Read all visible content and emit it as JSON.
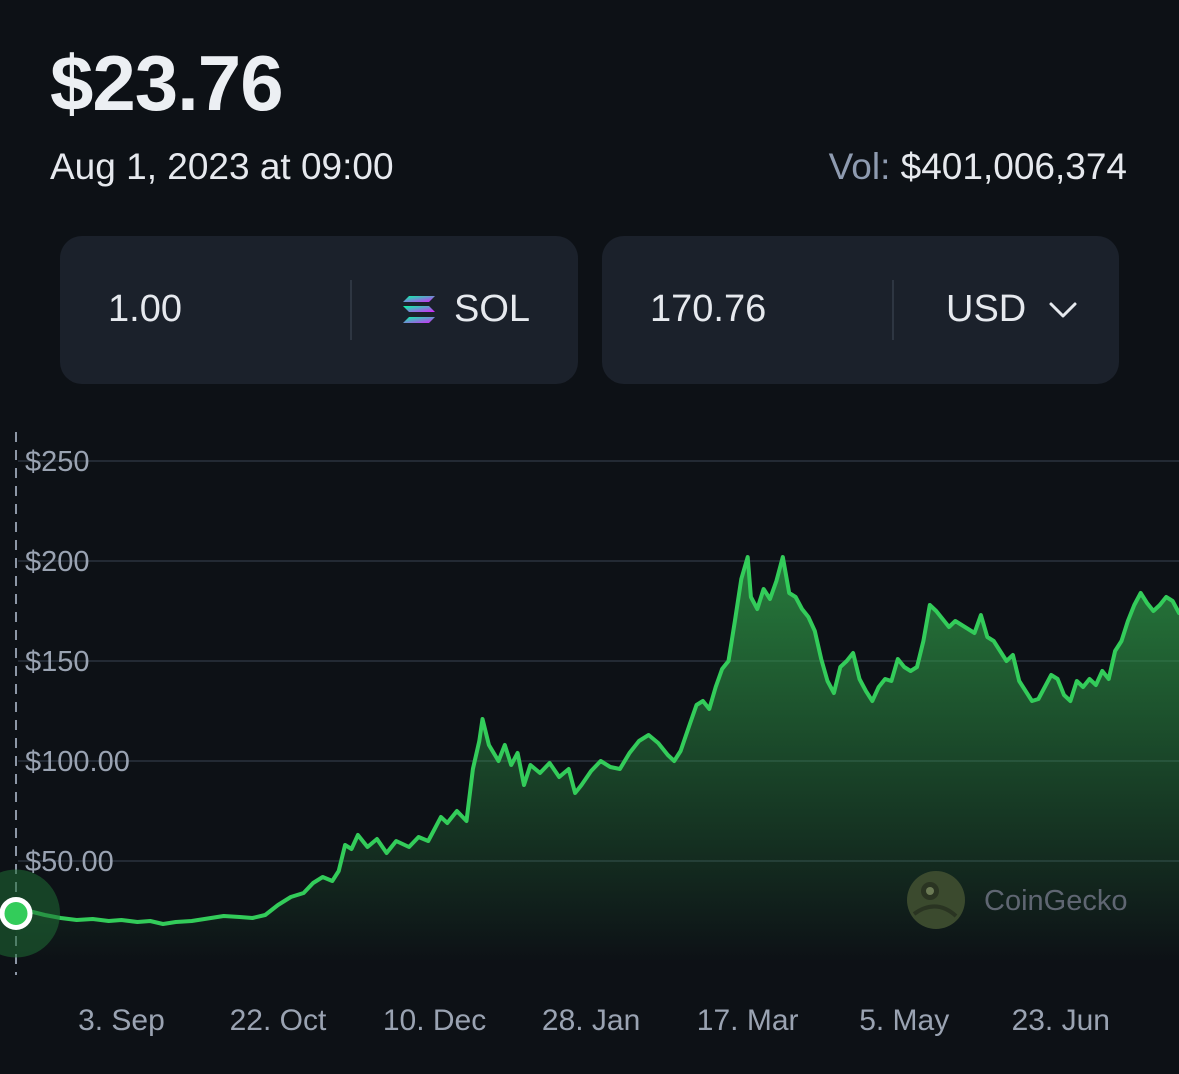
{
  "header": {
    "price": "$23.76",
    "date": "Aug 1, 2023 at 09:00",
    "volume_label": "Vol:",
    "volume_value": "$401,006,374"
  },
  "converter": {
    "from_amount": "1.00",
    "from_currency": "SOL",
    "to_amount": "170.76",
    "to_currency": "USD"
  },
  "branding": {
    "name": "CoinGecko"
  },
  "colors": {
    "background": "#0d1116",
    "card": "#1b212b",
    "line": "#33cc5a",
    "gridline": "#232a34"
  },
  "chart_data": {
    "type": "area",
    "ylim": [
      0,
      250
    ],
    "y_tick_labels": [
      "$250",
      "$200",
      "$150",
      "$100.00",
      "$50.00"
    ],
    "y_tick_values": [
      250,
      200,
      150,
      100,
      50
    ],
    "x_tick_labels": [
      "3. Sep",
      "22. Oct",
      "10. Dec",
      "28. Jan",
      "17. Mar",
      "5. May",
      "23. Jun"
    ],
    "x_tick_dates": [
      "2023-09-03",
      "2023-10-22",
      "2023-12-10",
      "2024-01-28",
      "2024-03-17",
      "2024-05-05",
      "2024-06-23"
    ],
    "x_range": [
      "2023-08-01",
      "2024-07-30"
    ],
    "grid": true,
    "marker": {
      "x": "2023-08-01",
      "y": 23.76
    },
    "series": [
      {
        "values": [
          [
            "2023-08-01",
            23.76
          ],
          [
            "2023-08-05",
            25
          ],
          [
            "2023-08-10",
            23
          ],
          [
            "2023-08-15",
            21.5
          ],
          [
            "2023-08-20",
            20.5
          ],
          [
            "2023-08-25",
            21
          ],
          [
            "2023-08-30",
            20
          ],
          [
            "2023-09-03",
            20.5
          ],
          [
            "2023-09-08",
            19.5
          ],
          [
            "2023-09-12",
            20
          ],
          [
            "2023-09-16",
            18.5
          ],
          [
            "2023-09-20",
            19.5
          ],
          [
            "2023-09-25",
            20
          ],
          [
            "2023-10-01",
            21.5
          ],
          [
            "2023-10-05",
            22.5
          ],
          [
            "2023-10-10",
            22
          ],
          [
            "2023-10-14",
            21.5
          ],
          [
            "2023-10-18",
            23
          ],
          [
            "2023-10-22",
            28
          ],
          [
            "2023-10-26",
            32
          ],
          [
            "2023-10-30",
            34
          ],
          [
            "2023-11-02",
            39
          ],
          [
            "2023-11-05",
            42
          ],
          [
            "2023-11-08",
            40
          ],
          [
            "2023-11-10",
            45
          ],
          [
            "2023-11-12",
            58
          ],
          [
            "2023-11-14",
            56
          ],
          [
            "2023-11-16",
            63
          ],
          [
            "2023-11-19",
            57
          ],
          [
            "2023-11-22",
            61
          ],
          [
            "2023-11-25",
            54
          ],
          [
            "2023-11-28",
            60
          ],
          [
            "2023-12-02",
            57
          ],
          [
            "2023-12-05",
            62
          ],
          [
            "2023-12-08",
            60
          ],
          [
            "2023-12-10",
            66
          ],
          [
            "2023-12-12",
            72
          ],
          [
            "2023-12-14",
            69
          ],
          [
            "2023-12-17",
            75
          ],
          [
            "2023-12-20",
            70
          ],
          [
            "2023-12-22",
            96
          ],
          [
            "2023-12-24",
            110
          ],
          [
            "2023-12-25",
            121
          ],
          [
            "2023-12-27",
            108
          ],
          [
            "2023-12-30",
            100
          ],
          [
            "2024-01-01",
            108
          ],
          [
            "2024-01-03",
            98
          ],
          [
            "2024-01-05",
            104
          ],
          [
            "2024-01-07",
            88
          ],
          [
            "2024-01-09",
            98
          ],
          [
            "2024-01-12",
            94
          ],
          [
            "2024-01-15",
            99
          ],
          [
            "2024-01-18",
            92
          ],
          [
            "2024-01-21",
            96
          ],
          [
            "2024-01-23",
            84
          ],
          [
            "2024-01-25",
            88
          ],
          [
            "2024-01-28",
            95
          ],
          [
            "2024-01-31",
            100
          ],
          [
            "2024-02-03",
            97
          ],
          [
            "2024-02-06",
            96
          ],
          [
            "2024-02-09",
            104
          ],
          [
            "2024-02-12",
            110
          ],
          [
            "2024-02-15",
            113
          ],
          [
            "2024-02-18",
            109
          ],
          [
            "2024-02-21",
            103
          ],
          [
            "2024-02-23",
            100
          ],
          [
            "2024-02-25",
            105
          ],
          [
            "2024-02-28",
            119
          ],
          [
            "2024-03-01",
            128
          ],
          [
            "2024-03-03",
            130
          ],
          [
            "2024-03-05",
            126
          ],
          [
            "2024-03-07",
            137
          ],
          [
            "2024-03-09",
            146
          ],
          [
            "2024-03-11",
            150
          ],
          [
            "2024-03-13",
            170
          ],
          [
            "2024-03-15",
            191
          ],
          [
            "2024-03-17",
            202
          ],
          [
            "2024-03-18",
            182
          ],
          [
            "2024-03-20",
            176
          ],
          [
            "2024-03-22",
            186
          ],
          [
            "2024-03-24",
            181
          ],
          [
            "2024-03-26",
            190
          ],
          [
            "2024-03-28",
            202
          ],
          [
            "2024-03-30",
            184
          ],
          [
            "2024-04-01",
            182
          ],
          [
            "2024-04-03",
            176
          ],
          [
            "2024-04-05",
            172
          ],
          [
            "2024-04-07",
            165
          ],
          [
            "2024-04-09",
            151
          ],
          [
            "2024-04-11",
            140
          ],
          [
            "2024-04-13",
            134
          ],
          [
            "2024-04-15",
            147
          ],
          [
            "2024-04-17",
            150
          ],
          [
            "2024-04-19",
            154
          ],
          [
            "2024-04-21",
            141
          ],
          [
            "2024-04-23",
            135
          ],
          [
            "2024-04-25",
            130
          ],
          [
            "2024-04-27",
            137
          ],
          [
            "2024-04-29",
            141
          ],
          [
            "2024-05-01",
            140
          ],
          [
            "2024-05-03",
            151
          ],
          [
            "2024-05-05",
            147
          ],
          [
            "2024-05-07",
            145
          ],
          [
            "2024-05-09",
            147
          ],
          [
            "2024-05-11",
            160
          ],
          [
            "2024-05-13",
            178
          ],
          [
            "2024-05-15",
            175
          ],
          [
            "2024-05-17",
            171
          ],
          [
            "2024-05-19",
            167
          ],
          [
            "2024-05-21",
            170
          ],
          [
            "2024-05-23",
            168
          ],
          [
            "2024-05-25",
            166
          ],
          [
            "2024-05-27",
            164
          ],
          [
            "2024-05-29",
            173
          ],
          [
            "2024-05-31",
            162
          ],
          [
            "2024-06-02",
            160
          ],
          [
            "2024-06-04",
            155
          ],
          [
            "2024-06-06",
            150
          ],
          [
            "2024-06-08",
            153
          ],
          [
            "2024-06-10",
            140
          ],
          [
            "2024-06-12",
            135
          ],
          [
            "2024-06-14",
            130
          ],
          [
            "2024-06-16",
            131
          ],
          [
            "2024-06-18",
            137
          ],
          [
            "2024-06-20",
            143
          ],
          [
            "2024-06-22",
            141
          ],
          [
            "2024-06-24",
            133
          ],
          [
            "2024-06-26",
            130
          ],
          [
            "2024-06-28",
            140
          ],
          [
            "2024-06-30",
            137
          ],
          [
            "2024-07-02",
            141
          ],
          [
            "2024-07-04",
            138
          ],
          [
            "2024-07-06",
            145
          ],
          [
            "2024-07-08",
            141
          ],
          [
            "2024-07-10",
            155
          ],
          [
            "2024-07-12",
            160
          ],
          [
            "2024-07-14",
            170
          ],
          [
            "2024-07-16",
            178
          ],
          [
            "2024-07-18",
            184
          ],
          [
            "2024-07-20",
            179
          ],
          [
            "2024-07-22",
            175
          ],
          [
            "2024-07-24",
            178
          ],
          [
            "2024-07-26",
            182
          ],
          [
            "2024-07-28",
            180
          ],
          [
            "2024-07-30",
            174
          ]
        ]
      }
    ]
  }
}
